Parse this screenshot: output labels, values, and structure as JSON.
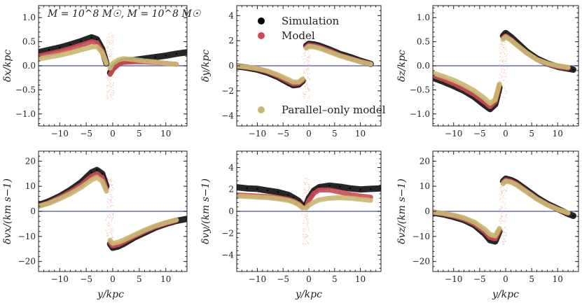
{
  "figure": {
    "annotation": "M = 10^8 M☉, M = 10^8 M☉",
    "xlabel": "y/kpc"
  },
  "legend": [
    {
      "label": "Simulation",
      "color": "#000000"
    },
    {
      "label": "Model",
      "color": "#cc4c55"
    },
    {
      "label": "Parallel–only model",
      "color": "#c9b871"
    }
  ],
  "colors": {
    "simulation": "#000000",
    "model": "#cc4c55",
    "parallel": "#c9b871",
    "zero_line": "#6a6fb5",
    "scatter_light": "#e7a389"
  },
  "chart_data": [
    {
      "id": "dx",
      "type": "scatter",
      "ylabel": "δx/kpc",
      "xlim": [
        -14,
        14
      ],
      "ylim": [
        -1.25,
        1.25
      ],
      "xticks": [
        -10,
        -5,
        0,
        5,
        10
      ],
      "xticklabels": [
        "−10",
        "−5",
        "0",
        "5",
        "10"
      ],
      "yticks": [
        -1.0,
        -0.5,
        0.0,
        0.5,
        1.0
      ],
      "yticklabels": [
        "−1.0",
        "−0.5",
        "0.0",
        "0.5",
        "1.0"
      ],
      "series": [
        {
          "name": "Simulation",
          "x": [
            -14,
            -12,
            -10,
            -8,
            -6,
            -4,
            -3,
            -2,
            -1.2
          ],
          "y": [
            0.28,
            0.33,
            0.38,
            0.44,
            0.51,
            0.59,
            0.55,
            0.35,
            0.05
          ]
        },
        {
          "name": "Simulation",
          "x": [
            -0.5,
            0,
            1,
            2,
            4,
            6,
            8,
            10,
            12,
            14
          ],
          "y": [
            -0.15,
            -0.05,
            0.05,
            0.1,
            0.12,
            0.15,
            0.18,
            0.21,
            0.25,
            0.28
          ]
        },
        {
          "name": "Model",
          "x": [
            -14,
            -12,
            -10,
            -8,
            -6,
            -4,
            -3,
            -2,
            -1.2
          ],
          "y": [
            0.2,
            0.25,
            0.3,
            0.36,
            0.43,
            0.5,
            0.48,
            0.3,
            0.05
          ]
        },
        {
          "name": "Model",
          "x": [
            -0.5,
            0,
            1,
            2,
            4,
            6,
            8,
            10,
            12
          ],
          "y": [
            -0.18,
            -0.08,
            0.02,
            0.07,
            0.08,
            0.08,
            0.07,
            0.05,
            0.03
          ]
        },
        {
          "name": "Parallel–only model",
          "x": [
            -14,
            -12,
            -10,
            -8,
            -6,
            -4,
            -3,
            -2,
            -1.2
          ],
          "y": [
            0.14,
            0.18,
            0.22,
            0.27,
            0.33,
            0.39,
            0.4,
            0.28,
            0.05
          ]
        },
        {
          "name": "Parallel–only model",
          "x": [
            -0.5,
            0,
            1,
            2,
            4,
            6,
            8,
            10,
            12
          ],
          "y": [
            -0.05,
            0.05,
            0.12,
            0.15,
            0.13,
            0.1,
            0.08,
            0.05,
            0.03
          ]
        }
      ]
    },
    {
      "id": "dy",
      "type": "scatter",
      "ylabel": "δy/kpc",
      "xlim": [
        -14,
        14
      ],
      "ylim": [
        -4.8,
        4.8
      ],
      "xticks": [
        -10,
        -5,
        0,
        5,
        10
      ],
      "xticklabels": [
        "−10",
        "−5",
        "0",
        "5",
        "10"
      ],
      "yticks": [
        -4,
        -2,
        0,
        2,
        4
      ],
      "yticklabels": [
        "−4",
        "−2",
        "0",
        "2",
        "4"
      ],
      "series": [
        {
          "name": "Simulation",
          "x": [
            -14,
            -12,
            -10,
            -8,
            -6,
            -4,
            -3,
            -2,
            -1.2
          ],
          "y": [
            -0.05,
            -0.15,
            -0.3,
            -0.55,
            -0.9,
            -1.35,
            -1.55,
            -1.5,
            -1.2
          ]
        },
        {
          "name": "Simulation",
          "x": [
            -0.5,
            0,
            1,
            2,
            4,
            6,
            8,
            10,
            12
          ],
          "y": [
            1.6,
            1.75,
            1.7,
            1.6,
            1.3,
            0.95,
            0.7,
            0.4,
            0.15
          ]
        },
        {
          "name": "Model",
          "x": [
            -14,
            -12,
            -10,
            -8,
            -6,
            -4,
            -3,
            -2,
            -1.2
          ],
          "y": [
            -0.03,
            -0.12,
            -0.25,
            -0.48,
            -0.82,
            -1.25,
            -1.45,
            -1.4,
            -1.15
          ]
        },
        {
          "name": "Model",
          "x": [
            -0.5,
            0,
            1,
            2,
            4,
            6,
            8,
            10,
            12
          ],
          "y": [
            1.5,
            1.65,
            1.6,
            1.5,
            1.2,
            0.85,
            0.6,
            0.35,
            0.15
          ]
        },
        {
          "name": "Parallel–only model",
          "x": [
            -14,
            -12,
            -10,
            -8,
            -6,
            -4,
            -3,
            -2,
            -1.2
          ],
          "y": [
            -0.02,
            -0.1,
            -0.22,
            -0.42,
            -0.72,
            -1.1,
            -1.3,
            -1.3,
            -1.05
          ]
        },
        {
          "name": "Parallel–only model",
          "x": [
            -0.5,
            0,
            1,
            2,
            4,
            6,
            8,
            10,
            12
          ],
          "y": [
            1.4,
            1.55,
            1.5,
            1.4,
            1.1,
            0.8,
            0.55,
            0.3,
            0.12
          ]
        }
      ]
    },
    {
      "id": "dz",
      "type": "scatter",
      "ylabel": "δz/kpc",
      "xlim": [
        -14,
        14
      ],
      "ylim": [
        -1.25,
        1.25
      ],
      "xticks": [
        -10,
        -5,
        0,
        5,
        10
      ],
      "xticklabels": [
        "−10",
        "−5",
        "0",
        "5",
        "10"
      ],
      "yticks": [
        -1.0,
        -0.5,
        0.0,
        0.5,
        1.0
      ],
      "yticklabels": [
        "−1.0",
        "−0.5",
        "0.0",
        "0.5",
        "1.0"
      ],
      "series": [
        {
          "name": "Simulation",
          "x": [
            -14,
            -12,
            -10,
            -8,
            -6,
            -4,
            -3,
            -2,
            -1.2
          ],
          "y": [
            -0.25,
            -0.33,
            -0.42,
            -0.52,
            -0.65,
            -0.82,
            -0.9,
            -0.8,
            -0.45
          ]
        },
        {
          "name": "Simulation",
          "x": [
            -0.5,
            0,
            1,
            2,
            4,
            6,
            8,
            10,
            12,
            13
          ],
          "y": [
            0.62,
            0.68,
            0.6,
            0.5,
            0.3,
            0.15,
            0.05,
            -0.02,
            -0.06,
            -0.08
          ]
        },
        {
          "name": "Model",
          "x": [
            -14,
            -12,
            -10,
            -8,
            -6,
            -4,
            -3,
            -2,
            -1.2
          ],
          "y": [
            -0.2,
            -0.28,
            -0.37,
            -0.48,
            -0.6,
            -0.76,
            -0.85,
            -0.75,
            -0.4
          ]
        },
        {
          "name": "Model",
          "x": [
            -0.5,
            0,
            1,
            2,
            4,
            6,
            8,
            10,
            12
          ],
          "y": [
            0.58,
            0.62,
            0.55,
            0.45,
            0.27,
            0.13,
            0.04,
            -0.02,
            -0.05
          ]
        },
        {
          "name": "Parallel–only model",
          "x": [
            -14,
            -12,
            -10,
            -8,
            -6,
            -4,
            -3,
            -2,
            -1.2
          ],
          "y": [
            -0.15,
            -0.22,
            -0.3,
            -0.4,
            -0.52,
            -0.68,
            -0.78,
            -0.7,
            -0.38
          ]
        },
        {
          "name": "Parallel–only model",
          "x": [
            -0.5,
            0,
            1,
            2,
            4,
            6,
            8,
            10,
            12
          ],
          "y": [
            0.55,
            0.6,
            0.53,
            0.44,
            0.27,
            0.13,
            0.05,
            0,
            -0.03
          ]
        }
      ]
    },
    {
      "id": "dvx",
      "type": "scatter",
      "ylabel": "δvx/(km s−1)",
      "xlim": [
        -14,
        14
      ],
      "ylim": [
        -24,
        24
      ],
      "xticks": [
        -10,
        -5,
        0,
        5,
        10
      ],
      "xticklabels": [
        "−10",
        "−5",
        "0",
        "5",
        "10"
      ],
      "yticks": [
        -20,
        -10,
        0,
        10,
        20
      ],
      "yticklabels": [
        "−20",
        "−10",
        "0",
        "10",
        "20"
      ],
      "series": [
        {
          "name": "Simulation",
          "x": [
            -14,
            -12,
            -10,
            -8,
            -6,
            -4,
            -3,
            -2,
            -1.2
          ],
          "y": [
            2.5,
            4,
            6,
            8.5,
            11.5,
            15.5,
            16.5,
            15,
            10
          ]
        },
        {
          "name": "Simulation",
          "x": [
            -0.5,
            0,
            1,
            2,
            4,
            6,
            8,
            10,
            12,
            14
          ],
          "y": [
            -13,
            -14.5,
            -14,
            -13,
            -10.5,
            -8.5,
            -6.5,
            -5,
            -3.8,
            -3
          ]
        },
        {
          "name": "Model",
          "x": [
            -14,
            -12,
            -10,
            -8,
            -6,
            -4,
            -3,
            -2,
            -1.2
          ],
          "y": [
            2,
            3.5,
            5.5,
            7.8,
            10.5,
            14,
            15,
            13.5,
            9
          ]
        },
        {
          "name": "Model",
          "x": [
            -0.5,
            0,
            1,
            2,
            4,
            6,
            8,
            10,
            12
          ],
          "y": [
            -12.5,
            -13.8,
            -13.3,
            -12.3,
            -10,
            -8,
            -6.2,
            -4.8,
            -3.6
          ]
        },
        {
          "name": "Parallel–only model",
          "x": [
            -14,
            -12,
            -10,
            -8,
            -6,
            -4,
            -3,
            -2,
            -1.2
          ],
          "y": [
            2,
            3.2,
            5,
            7,
            9.5,
            12.5,
            13.5,
            12,
            8
          ]
        },
        {
          "name": "Parallel–only model",
          "x": [
            -0.5,
            0,
            1,
            2,
            4,
            6,
            8,
            10,
            12
          ],
          "y": [
            -11.5,
            -12.8,
            -12.3,
            -11.5,
            -9.5,
            -7.5,
            -5.8,
            -4.5,
            -3.4
          ]
        }
      ]
    },
    {
      "id": "dvy",
      "type": "scatter",
      "ylabel": "δvy/(km s−1)",
      "xlim": [
        -14,
        14
      ],
      "ylim": [
        -5.5,
        5.5
      ],
      "xticks": [
        -10,
        -5,
        0,
        5,
        10
      ],
      "xticklabels": [
        "−10",
        "−5",
        "0",
        "5",
        "10"
      ],
      "yticks": [
        -4,
        -2,
        0,
        2,
        4
      ],
      "yticklabels": [
        "−4",
        "−2",
        "0",
        "2",
        "4"
      ],
      "series": [
        {
          "name": "Simulation",
          "x": [
            -14,
            -12,
            -10,
            -8,
            -6,
            -4,
            -3,
            -2,
            -1.2
          ],
          "y": [
            2.2,
            2.1,
            2.05,
            1.9,
            1.75,
            1.5,
            1.25,
            0.95,
            0.5
          ]
        },
        {
          "name": "Simulation",
          "x": [
            -0.5,
            0,
            1,
            2,
            4,
            6,
            8,
            10,
            12,
            14
          ],
          "y": [
            0.6,
            1.2,
            1.9,
            2.2,
            2.35,
            2.25,
            2.1,
            2,
            2.05,
            2.1
          ]
        },
        {
          "name": "Model",
          "x": [
            -14,
            -12,
            -10,
            -8,
            -6,
            -4,
            -3,
            -2,
            -1.2
          ],
          "y": [
            1.5,
            1.45,
            1.4,
            1.35,
            1.25,
            1.1,
            0.95,
            0.7,
            0.35
          ]
        },
        {
          "name": "Model",
          "x": [
            -0.5,
            0,
            1,
            2,
            4,
            6,
            8,
            10,
            12
          ],
          "y": [
            0.4,
            1,
            1.65,
            1.95,
            1.95,
            1.75,
            1.55,
            1.4,
            1.3
          ]
        },
        {
          "name": "Parallel–only model",
          "x": [
            -14,
            -12,
            -10,
            -8,
            -6,
            -4,
            -3,
            -2,
            -1.2
          ],
          "y": [
            1.4,
            1.35,
            1.3,
            1.25,
            1.15,
            1,
            0.85,
            0.6,
            0.3
          ]
        },
        {
          "name": "Parallel–only model",
          "x": [
            -0.5,
            0,
            1,
            2,
            4,
            6,
            8,
            10,
            12
          ],
          "y": [
            0.3,
            0.55,
            0.85,
            1.05,
            1.2,
            1.25,
            1.2,
            1.1,
            1
          ]
        }
      ]
    },
    {
      "id": "dvz",
      "type": "scatter",
      "ylabel": "δvz/(km s−1)",
      "xlim": [
        -14,
        14
      ],
      "ylim": [
        -24,
        24
      ],
      "xticks": [
        -10,
        -5,
        0,
        5,
        10
      ],
      "xticklabels": [
        "−10",
        "−5",
        "0",
        "5",
        "10"
      ],
      "yticks": [
        -20,
        -10,
        0,
        10,
        20
      ],
      "yticklabels": [
        "−20",
        "−10",
        "0",
        "10",
        "20"
      ],
      "series": [
        {
          "name": "Simulation",
          "x": [
            -14,
            -12,
            -10,
            -8,
            -6,
            -4,
            -3,
            -2,
            -1.2
          ],
          "y": [
            -0.5,
            -1.2,
            -2.2,
            -3.5,
            -5.5,
            -9,
            -11.5,
            -12,
            -8
          ]
        },
        {
          "name": "Simulation",
          "x": [
            -0.5,
            0,
            1,
            2,
            4,
            6,
            8,
            10,
            12,
            13
          ],
          "y": [
            12,
            13,
            12.5,
            11.5,
            8.5,
            5.5,
            3,
            1,
            -1,
            -1.8
          ]
        },
        {
          "name": "Model",
          "x": [
            -14,
            -12,
            -10,
            -8,
            -6,
            -4,
            -3,
            -2,
            -1.2
          ],
          "y": [
            -0.4,
            -1,
            -1.9,
            -3.1,
            -5,
            -8.2,
            -10.5,
            -11,
            -7.5
          ]
        },
        {
          "name": "Model",
          "x": [
            -0.5,
            0,
            1,
            2,
            4,
            6,
            8,
            10,
            12
          ],
          "y": [
            11.5,
            12.5,
            12,
            11,
            8,
            5,
            2.7,
            0.8,
            -0.8
          ]
        },
        {
          "name": "Parallel–only model",
          "x": [
            -14,
            -12,
            -10,
            -8,
            -6,
            -4,
            -3,
            -2,
            -1.2
          ],
          "y": [
            -0.3,
            -0.8,
            -1.5,
            -2.6,
            -4.3,
            -7.2,
            -9.2,
            -9.8,
            -6.8
          ]
        },
        {
          "name": "Parallel–only model",
          "x": [
            -0.5,
            0,
            1,
            2,
            4,
            6,
            8,
            10,
            12
          ],
          "y": [
            11,
            12,
            11.6,
            10.6,
            7.8,
            4.9,
            2.6,
            0.8,
            -0.6
          ]
        }
      ]
    }
  ]
}
